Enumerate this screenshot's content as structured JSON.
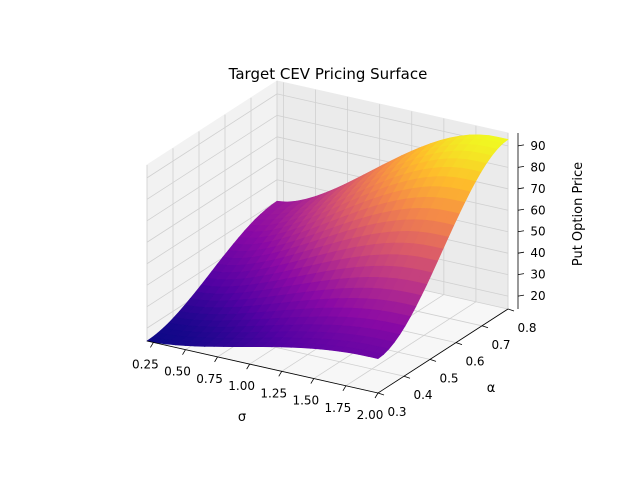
{
  "chart_data": {
    "type": "surface",
    "title": "Target CEV Pricing Surface",
    "xlabel": "σ",
    "ylabel": "α",
    "zlabel": "Put Option Price",
    "xlim": [
      0.2,
      2.0
    ],
    "ylim": [
      0.3,
      0.8
    ],
    "zlim": [
      14,
      96
    ],
    "x_ticks": [
      "0.25",
      "0.50",
      "0.75",
      "1.00",
      "1.25",
      "1.50",
      "1.75",
      "2.00"
    ],
    "y_ticks": [
      "0.3",
      "0.4",
      "0.5",
      "0.6",
      "0.7",
      "0.8"
    ],
    "z_ticks": [
      "20",
      "30",
      "40",
      "50",
      "60",
      "70",
      "80",
      "90"
    ],
    "colormap": "plasma",
    "grid": true,
    "corner_values": [
      {
        "sigma": 0.2,
        "alpha": 0.3,
        "price": 14
      },
      {
        "sigma": 2.0,
        "alpha": 0.3,
        "price": 30
      },
      {
        "sigma": 0.2,
        "alpha": 0.8,
        "price": 40
      },
      {
        "sigma": 2.0,
        "alpha": 0.8,
        "price": 93
      }
    ]
  }
}
